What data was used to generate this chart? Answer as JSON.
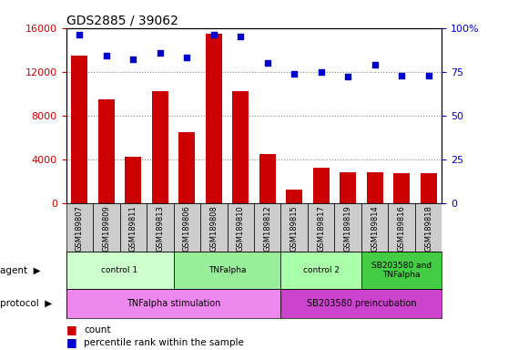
{
  "title": "GDS2885 / 39062",
  "samples": [
    "GSM189807",
    "GSM189809",
    "GSM189811",
    "GSM189813",
    "GSM189806",
    "GSM189808",
    "GSM189810",
    "GSM189812",
    "GSM189815",
    "GSM189817",
    "GSM189819",
    "GSM189814",
    "GSM189816",
    "GSM189818"
  ],
  "counts": [
    13500,
    9500,
    4200,
    10200,
    6500,
    15500,
    10200,
    4500,
    1200,
    3200,
    2800,
    2800,
    2700,
    2700
  ],
  "percentiles": [
    96,
    84,
    82,
    86,
    83,
    96,
    95,
    80,
    74,
    75,
    72,
    79,
    73,
    73
  ],
  "ylim_left": [
    0,
    16000
  ],
  "ylim_right": [
    0,
    100
  ],
  "yticks_left": [
    0,
    4000,
    8000,
    12000,
    16000
  ],
  "yticks_right": [
    0,
    25,
    50,
    75,
    100
  ],
  "bar_color": "#cc0000",
  "scatter_color": "#0000cc",
  "agent_groups": [
    {
      "label": "control 1",
      "start": 0,
      "end": 4,
      "color": "#ccffcc"
    },
    {
      "label": "TNFalpha",
      "start": 4,
      "end": 8,
      "color": "#99ee99"
    },
    {
      "label": "control 2",
      "start": 8,
      "end": 11,
      "color": "#aaffaa"
    },
    {
      "label": "SB203580 and\nTNFalpha",
      "start": 11,
      "end": 14,
      "color": "#44cc44"
    }
  ],
  "protocol_groups": [
    {
      "label": "TNFalpha stimulation",
      "start": 0,
      "end": 8,
      "color": "#ee88ee"
    },
    {
      "label": "SB203580 preincubation",
      "start": 8,
      "end": 14,
      "color": "#cc44cc"
    }
  ],
  "background_color": "#ffffff",
  "grid_color": "#888888",
  "tick_bg_color": "#cccccc",
  "bar_color_legend": "#cc0000",
  "scatter_color_legend": "#0000cc"
}
